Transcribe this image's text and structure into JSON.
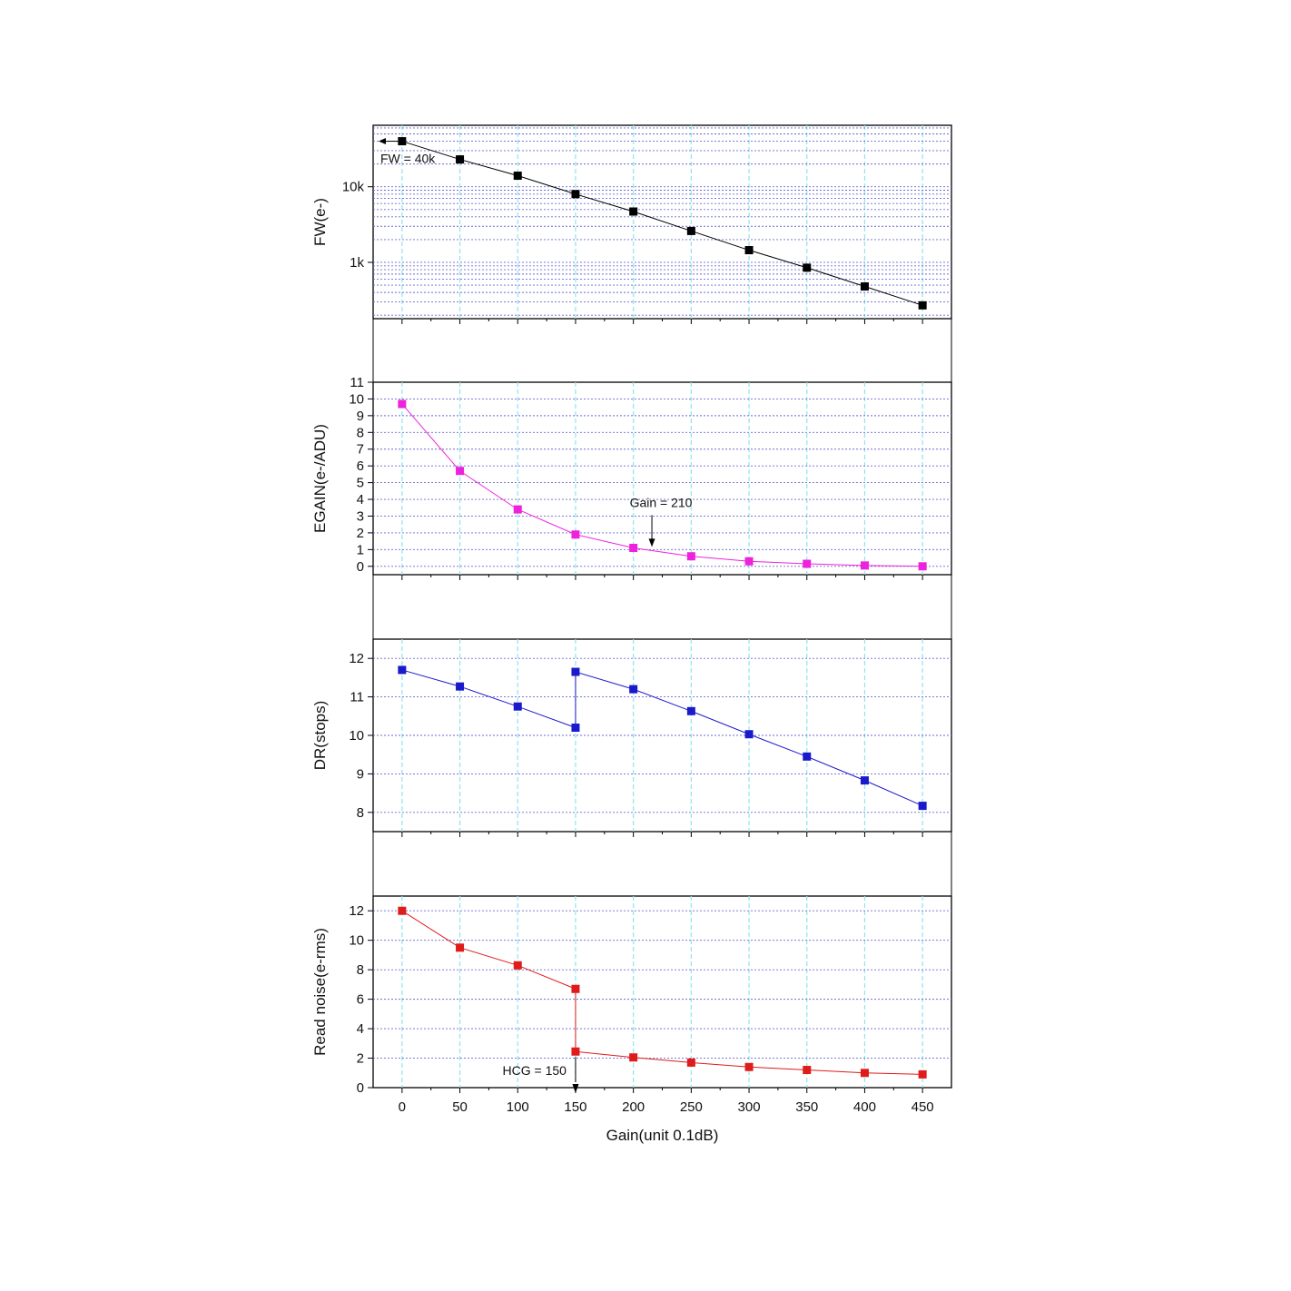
{
  "chart_data": [
    {
      "type": "line",
      "id": "fw",
      "ylabel": "FW(e-)",
      "yscale": "log",
      "ylim": [
        180,
        65000
      ],
      "yticks": [
        1000,
        10000
      ],
      "ytick_labels": [
        "1k",
        "10k"
      ],
      "color": "#000000",
      "x": [
        0,
        50,
        100,
        150,
        200,
        250,
        300,
        350,
        400,
        450
      ],
      "series": [
        {
          "x": [
            0,
            50,
            100,
            150,
            200,
            250,
            300,
            350,
            400,
            450
          ],
          "values": [
            40000,
            23000,
            14000,
            8000,
            4700,
            2600,
            1450,
            850,
            480,
            270
          ]
        }
      ],
      "annotation": {
        "text": "FW = 40k",
        "x": 0,
        "y": 40000,
        "arrow": "left"
      },
      "grid": true
    },
    {
      "type": "line",
      "id": "egain",
      "ylabel": "EGAIN(e-/ADU)",
      "yscale": "linear",
      "ylim": [
        -0.5,
        11
      ],
      "yticks": [
        0,
        1,
        2,
        3,
        4,
        5,
        6,
        7,
        8,
        9,
        10,
        11
      ],
      "ytick_labels": [
        "0",
        "1",
        "2",
        "3",
        "4",
        "5",
        "6",
        "7",
        "8",
        "9",
        "10",
        "11"
      ],
      "color": "#ee22dd",
      "series": [
        {
          "x": [
            0,
            50,
            100,
            150,
            200,
            250,
            300,
            350,
            400,
            450
          ],
          "values": [
            9.7,
            5.7,
            3.4,
            1.9,
            1.1,
            0.6,
            0.3,
            0.15,
            0.05,
            0.0
          ]
        }
      ],
      "annotation": {
        "text": "Gain = 210",
        "x": 216,
        "y": 1.0,
        "arrow": "down"
      },
      "grid": true
    },
    {
      "type": "line",
      "id": "dr",
      "ylabel": "DR(stops)",
      "yscale": "linear",
      "ylim": [
        7.5,
        12.5
      ],
      "yticks": [
        8,
        9,
        10,
        11,
        12
      ],
      "ytick_labels": [
        "8",
        "9",
        "10",
        "11",
        "12"
      ],
      "color": "#1a1acc",
      "series": [
        {
          "x": [
            0,
            50,
            100,
            150,
            150,
            200,
            250,
            300,
            350,
            400,
            450
          ],
          "values": [
            11.7,
            11.27,
            10.75,
            10.2,
            11.65,
            11.2,
            10.63,
            10.03,
            9.45,
            8.83,
            8.17
          ]
        }
      ],
      "grid": true
    },
    {
      "type": "line",
      "id": "read-noise",
      "ylabel": "Read noise(e-rms)",
      "xlabel": "Gain(unit 0.1dB)",
      "yscale": "linear",
      "ylim": [
        0,
        13
      ],
      "yticks": [
        0,
        2,
        4,
        6,
        8,
        10,
        12
      ],
      "ytick_labels": [
        "0",
        "2",
        "4",
        "6",
        "8",
        "10",
        "12"
      ],
      "color": "#e01b1b",
      "series": [
        {
          "x": [
            0,
            50,
            100,
            150,
            150,
            200,
            250,
            300,
            350,
            400,
            450
          ],
          "values": [
            12.0,
            9.5,
            8.3,
            6.7,
            2.45,
            2.05,
            1.7,
            1.4,
            1.2,
            1.0,
            0.9
          ]
        }
      ],
      "annotation": {
        "text": "HCG = 150",
        "x": 150,
        "y": 2.45,
        "arrow": "down"
      },
      "grid": true
    }
  ],
  "x_axis": {
    "xlim": [
      -25,
      475
    ],
    "ticks": [
      0,
      50,
      100,
      150,
      200,
      250,
      300,
      350,
      400,
      450
    ],
    "tick_labels": [
      "0",
      "50",
      "100",
      "150",
      "200",
      "250",
      "300",
      "350",
      "400",
      "450"
    ],
    "label": "Gain(unit 0.1dB)"
  }
}
